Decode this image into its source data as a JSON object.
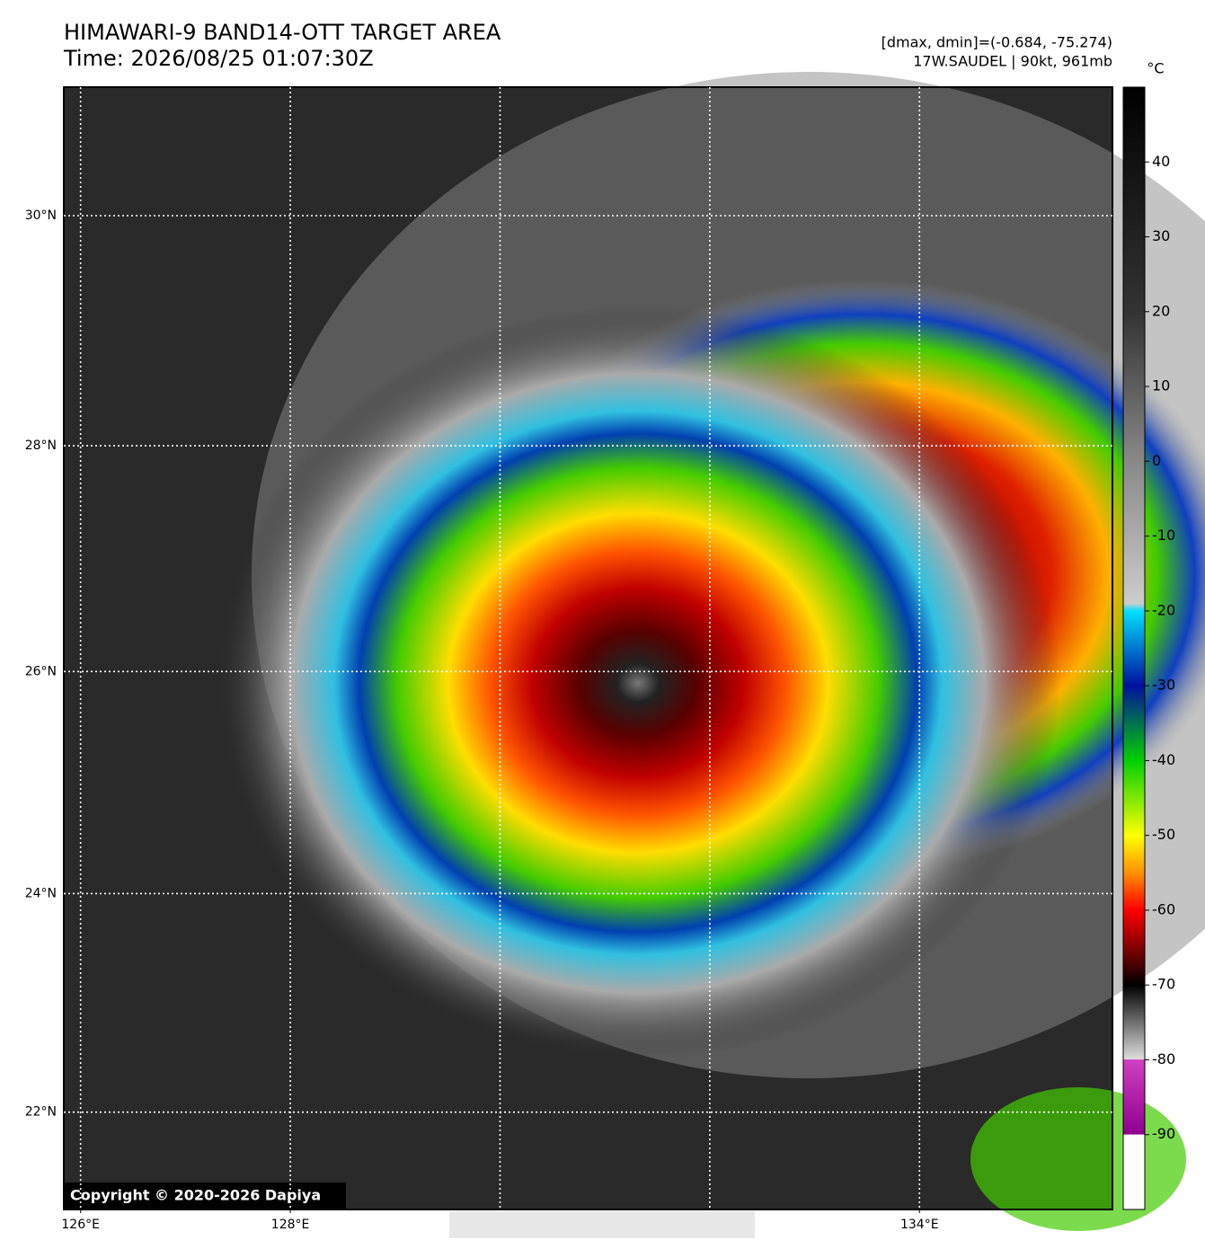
{
  "header": {
    "title": "HIMAWARI-9 BAND14-OTT TARGET AREA",
    "time": "Time: 2026/08/25 01:07:30Z",
    "range": "[dmax, dmin]=(-0.684, -75.274)",
    "storm": "17W.SAUDEL | 90kt, 961mb"
  },
  "map": {
    "latlim": [
      21.1,
      31.1
    ],
    "lonlim": [
      125.84,
      135.84
    ],
    "lat_ticks": [
      {
        "value": 30,
        "label": "30°N"
      },
      {
        "value": 28,
        "label": "28°N"
      },
      {
        "value": 26,
        "label": "26°N"
      },
      {
        "value": 24,
        "label": "24°N"
      },
      {
        "value": 22,
        "label": "22°N"
      }
    ],
    "lon_ticks": [
      {
        "value": 126,
        "label": "126°E"
      },
      {
        "value": 128,
        "label": "128°E"
      },
      {
        "value": 134,
        "label": "134°E"
      }
    ],
    "lon_gridlines": [
      126,
      128,
      130,
      132,
      134
    ],
    "copyright": "Copyright © 2020-2026 Dapiya"
  },
  "colorbar": {
    "label": "°C",
    "lim": [
      -100,
      50
    ],
    "ticks": [
      40,
      30,
      20,
      10,
      0,
      -10,
      -20,
      -30,
      -40,
      -50,
      -60,
      -70,
      -80,
      -90
    ]
  }
}
